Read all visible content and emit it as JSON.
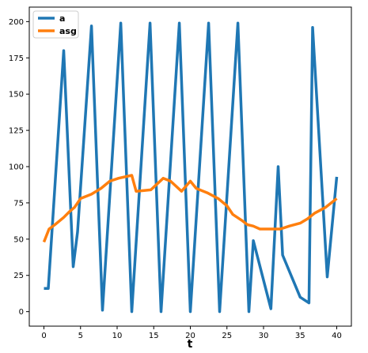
{
  "chart_data": {
    "type": "line",
    "title": "",
    "xlabel": "t",
    "ylabel": "",
    "xlim": [
      -2,
      42
    ],
    "ylim": [
      -10,
      210
    ],
    "xticks": [
      0,
      5,
      10,
      15,
      20,
      25,
      30,
      35,
      40
    ],
    "yticks": [
      0,
      25,
      50,
      75,
      100,
      125,
      150,
      175,
      200
    ],
    "grid": false,
    "legend_position": "top-left",
    "series": [
      {
        "name": "a",
        "color": "#1f77b4",
        "points": [
          [
            0,
            16
          ],
          [
            0.6,
            16
          ],
          [
            2.7,
            180
          ],
          [
            4,
            31
          ],
          [
            4.6,
            55
          ],
          [
            6.5,
            197
          ],
          [
            8,
            1
          ],
          [
            10.5,
            199
          ],
          [
            12,
            0
          ],
          [
            14.5,
            199
          ],
          [
            16,
            0
          ],
          [
            18.5,
            199
          ],
          [
            20,
            0
          ],
          [
            22.5,
            199
          ],
          [
            24,
            0
          ],
          [
            26.5,
            199
          ],
          [
            28,
            0
          ],
          [
            28.6,
            49
          ],
          [
            31,
            2
          ],
          [
            32,
            100
          ],
          [
            32.6,
            39
          ],
          [
            35,
            10
          ],
          [
            36.2,
            6
          ],
          [
            36.7,
            196
          ],
          [
            38.7,
            24
          ],
          [
            40,
            93
          ]
        ]
      },
      {
        "name": "asg",
        "color": "#ff7f0e",
        "points": [
          [
            0,
            48
          ],
          [
            0.7,
            57
          ],
          [
            1.5,
            60
          ],
          [
            2.7,
            65
          ],
          [
            3.5,
            69
          ],
          [
            4.2,
            72
          ],
          [
            5,
            78
          ],
          [
            6.5,
            81
          ],
          [
            7.8,
            85
          ],
          [
            9,
            90
          ],
          [
            10.2,
            92
          ],
          [
            12,
            94
          ],
          [
            12.6,
            83
          ],
          [
            14.6,
            84
          ],
          [
            16.3,
            92
          ],
          [
            17.3,
            90
          ],
          [
            18.8,
            83
          ],
          [
            20,
            90
          ],
          [
            20.8,
            85
          ],
          [
            22.3,
            82
          ],
          [
            23.8,
            78
          ],
          [
            25,
            73
          ],
          [
            25.8,
            67
          ],
          [
            27,
            63
          ],
          [
            27.8,
            60
          ],
          [
            28.6,
            59
          ],
          [
            29.5,
            57
          ],
          [
            31,
            57
          ],
          [
            32.3,
            57
          ],
          [
            33.5,
            59
          ],
          [
            35,
            61
          ],
          [
            36,
            64
          ],
          [
            37,
            68
          ],
          [
            38.5,
            72
          ],
          [
            40,
            78
          ]
        ]
      }
    ]
  }
}
